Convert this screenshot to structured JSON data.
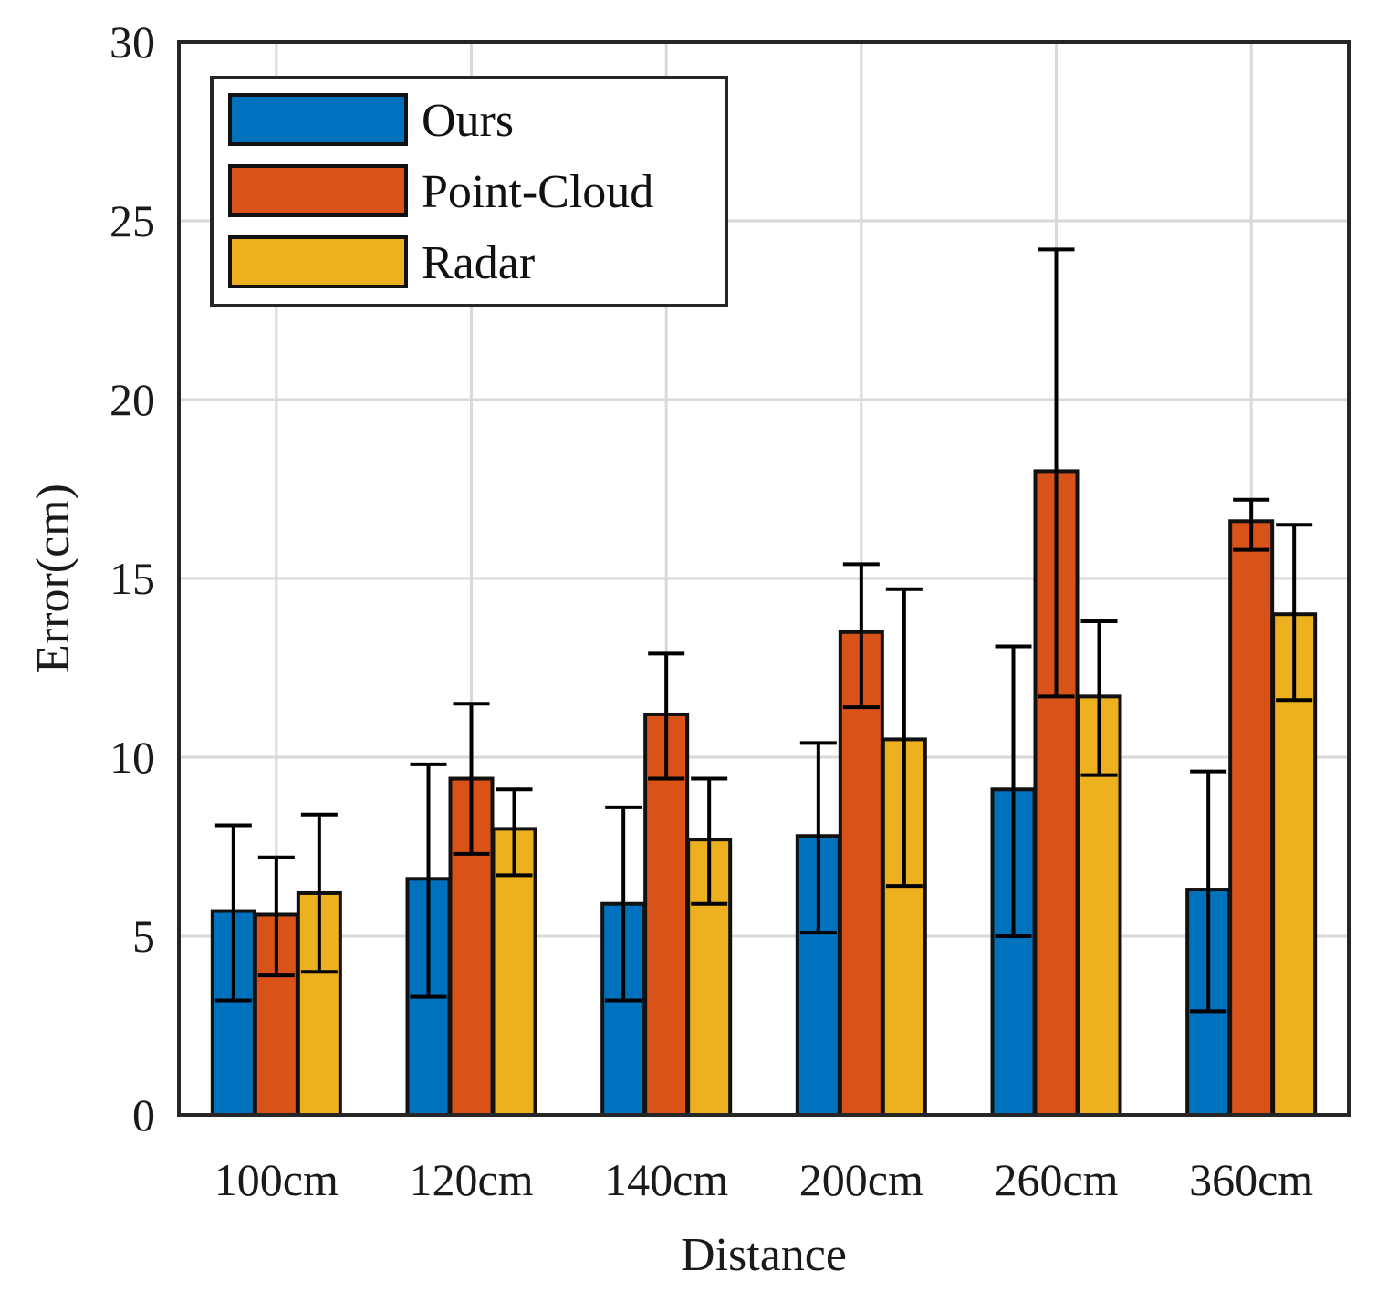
{
  "chart_data": {
    "type": "bar",
    "title": "",
    "xlabel": "Distance",
    "ylabel": "Error(cm)",
    "ylim": [
      0,
      30
    ],
    "yticks": [
      0,
      5,
      10,
      15,
      20,
      25,
      30
    ],
    "grid": true,
    "legend_position": "top-left",
    "categories": [
      "100cm",
      "120cm",
      "140cm",
      "200cm",
      "260cm",
      "360cm"
    ],
    "series": [
      {
        "name": "Ours",
        "color": "#0072bd",
        "values": [
          5.7,
          6.6,
          5.9,
          7.8,
          9.1,
          6.3
        ],
        "error_low": [
          3.2,
          3.3,
          3.2,
          5.1,
          5.0,
          2.9
        ],
        "error_high": [
          8.1,
          9.8,
          8.6,
          10.4,
          13.1,
          9.6
        ]
      },
      {
        "name": "Point-Cloud",
        "color": "#d95319",
        "values": [
          5.6,
          9.4,
          11.2,
          13.5,
          18.0,
          16.6
        ],
        "error_low": [
          3.9,
          7.3,
          9.4,
          11.4,
          11.7,
          15.8
        ],
        "error_high": [
          7.2,
          11.5,
          12.9,
          15.4,
          24.2,
          17.2
        ]
      },
      {
        "name": "Radar",
        "color": "#edb120",
        "values": [
          6.2,
          8.0,
          7.7,
          10.5,
          11.7,
          14.0
        ],
        "error_low": [
          4.0,
          6.7,
          5.9,
          6.4,
          9.5,
          11.6
        ],
        "error_high": [
          8.4,
          9.1,
          9.4,
          14.7,
          13.8,
          16.5
        ]
      }
    ]
  }
}
